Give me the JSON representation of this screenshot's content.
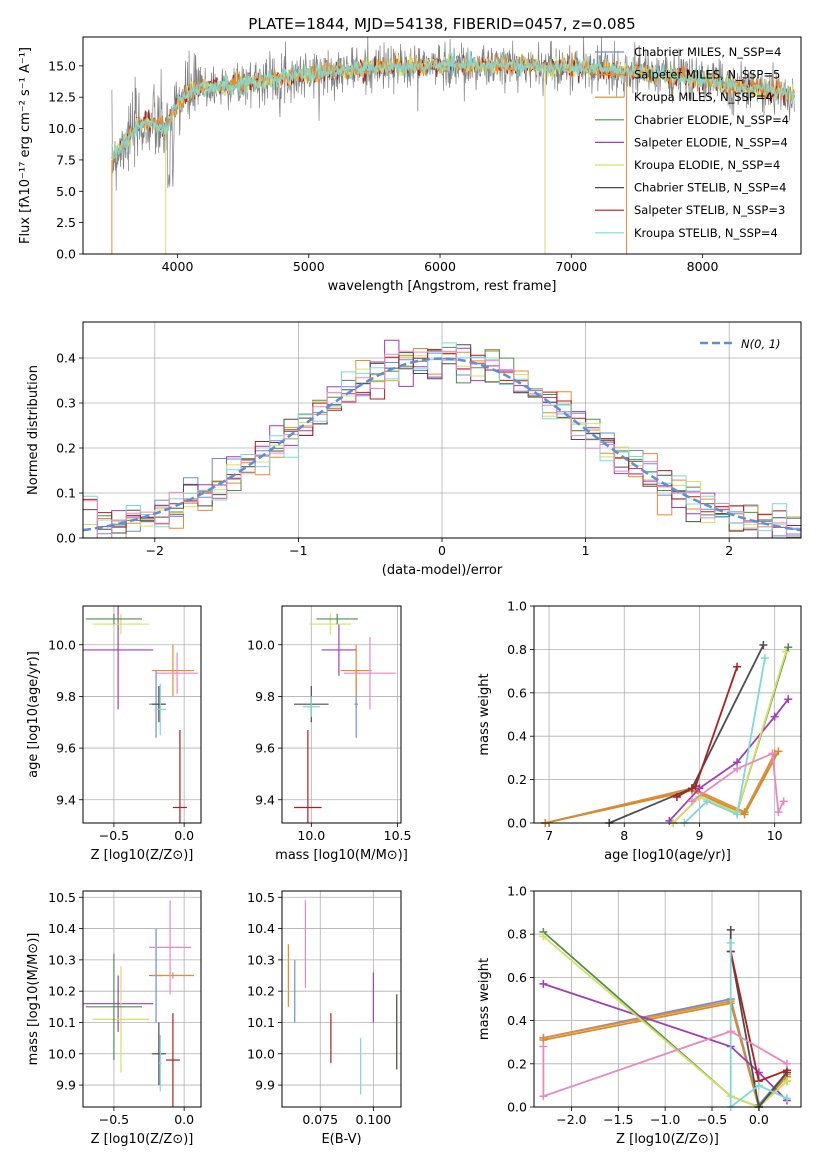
{
  "colors": {
    "grid": "#b0b0b0",
    "series": [
      "#6a8fd8",
      "#ee8a2e",
      "#d08d2a",
      "#4f8f4f",
      "#a03db8",
      "#d8e060",
      "#4d4d4d",
      "#b01f1f",
      "#7fd8d8"
    ],
    "pink": "#e889c4",
    "normal_curve": "#5b8fd6"
  },
  "chart_data": [
    {
      "id": "spectrum",
      "type": "line",
      "title": "PLATE=1844, MJD=54138, FIBERID=0457, z=0.085",
      "xlabel": "wavelength [Angstrom, rest frame]",
      "ylabel": "Flux [fλ10⁻¹⁷ erg cm⁻² s⁻¹ A⁻¹]",
      "xlim": [
        3280,
        8750
      ],
      "ylim": [
        0,
        17.3
      ],
      "x_ticks": [
        4000,
        5000,
        6000,
        7000,
        8000
      ],
      "y_ticks": [
        0.0,
        2.5,
        5.0,
        7.5,
        10.0,
        12.5,
        15.0
      ],
      "grid": false,
      "legend_position": "top-right",
      "legend": [
        "Chabrier MILES, N_SSP=4",
        "Salpeter MILES, N_SSP=5",
        "Kroupa MILES, N_SSP=4",
        "Chabrier ELODIE, N_SSP=4",
        "Salpeter ELODIE, N_SSP=4",
        "Kroupa ELODIE, N_SSP=4",
        "Chabrier STELIB, N_SSP=4",
        "Salpeter STELIB, N_SSP=3",
        "Kroupa STELIB, N_SSP=4"
      ],
      "continuum_x": [
        3500,
        3600,
        3700,
        3800,
        3900,
        4000,
        4100,
        4200,
        4400,
        4600,
        4800,
        5000,
        5200,
        5500,
        5800,
        6000,
        6300,
        6600,
        6900,
        7200,
        7500,
        7800,
        8000,
        8200,
        8500,
        8700
      ],
      "continuum_y": [
        7.5,
        9.0,
        10.2,
        10.5,
        9.8,
        12.0,
        13.0,
        13.2,
        13.5,
        13.8,
        14.1,
        14.4,
        14.6,
        14.8,
        15.0,
        15.1,
        15.0,
        15.0,
        14.9,
        14.8,
        14.5,
        14.2,
        13.9,
        13.5,
        13.0,
        12.7
      ]
    },
    {
      "id": "residuals",
      "type": "line",
      "xlabel": "(data-model)/error",
      "ylabel": "Normed distribution",
      "xlim": [
        -2.5,
        2.5
      ],
      "ylim": [
        0,
        0.48
      ],
      "x_ticks": [
        -2,
        -1,
        0,
        1,
        2
      ],
      "y_ticks": [
        0.0,
        0.1,
        0.2,
        0.3,
        0.4
      ],
      "grid": true,
      "legend_position": "top-right",
      "legend": [
        "N(0, 1)"
      ],
      "bin_width": 0.1
    },
    {
      "id": "age_vs_Z",
      "type": "scatter",
      "xlabel": "Z [log10(Z/Z⊙)]",
      "ylabel": "age [log10(age/yr)]",
      "xlim": [
        -0.72,
        0.12
      ],
      "ylim": [
        9.31,
        10.15
      ],
      "x_ticks": [
        -0.5,
        0.0
      ],
      "y_ticks": [
        9.4,
        9.6,
        9.8,
        10.0
      ],
      "grid": true,
      "points": [
        {
          "series": 0,
          "x": -0.2,
          "y": 9.77,
          "xerr": 0.05,
          "yerr": 0.13
        },
        {
          "series": 1,
          "x": -0.08,
          "y": 9.9,
          "xerr": 0.15,
          "yerr": 0.1
        },
        {
          "series": 4,
          "x": -0.47,
          "y": 9.98,
          "xerr": 0.25,
          "yerr": 0.23
        },
        {
          "series": 5,
          "x": -0.45,
          "y": 10.08,
          "xerr": 0.2,
          "yerr": 0.04
        },
        {
          "series": 6,
          "x": -0.18,
          "y": 9.77,
          "xerr": 0.05,
          "yerr": 0.07
        },
        {
          "series": 3,
          "x": -0.5,
          "y": 10.1,
          "xerr": 0.2,
          "yerr": 0.02
        },
        {
          "series": 7,
          "x": -0.03,
          "y": 9.37,
          "xerr": 0.05,
          "yerr": 0.3
        },
        {
          "series": 8,
          "x": -0.17,
          "y": 9.75,
          "xerr": 0.04,
          "yerr": 0.1
        },
        {
          "series": "pink",
          "x": -0.05,
          "y": 9.89,
          "xerr": 0.15,
          "yerr": 0.08
        }
      ]
    },
    {
      "id": "age_vs_mass",
      "type": "scatter",
      "xlabel": "mass [log10(M/M⊙)]",
      "ylabel": "",
      "xlim": [
        9.83,
        10.52
      ],
      "ylim": [
        9.31,
        10.15
      ],
      "x_ticks": [
        10.0,
        10.5
      ],
      "y_ticks": [
        9.4,
        9.6,
        9.8,
        10.0
      ],
      "grid": true,
      "points": [
        {
          "series": 0,
          "x": 10.26,
          "y": 9.77,
          "xerr": 0.01,
          "yerr": 0.13
        },
        {
          "series": 1,
          "x": 10.26,
          "y": 9.9,
          "xerr": 0.09,
          "yerr": 0.1
        },
        {
          "series": 4,
          "x": 10.16,
          "y": 9.98,
          "xerr": 0.1,
          "yerr": 0.1
        },
        {
          "series": 5,
          "x": 10.11,
          "y": 10.08,
          "xerr": 0.12,
          "yerr": 0.04
        },
        {
          "series": 6,
          "x": 10.0,
          "y": 9.77,
          "xerr": 0.1,
          "yerr": 0.07
        },
        {
          "series": 3,
          "x": 10.15,
          "y": 10.1,
          "xerr": 0.12,
          "yerr": 0.02
        },
        {
          "series": 7,
          "x": 9.98,
          "y": 9.37,
          "xerr": 0.08,
          "yerr": 0.3
        },
        {
          "series": 8,
          "x": 10.0,
          "y": 9.76,
          "xerr": 0.05,
          "yerr": 0.04
        },
        {
          "series": "pink",
          "x": 10.34,
          "y": 9.89,
          "xerr": 0.15,
          "yerr": 0.14
        }
      ]
    },
    {
      "id": "massweight_vs_age",
      "type": "line",
      "xlabel": "age [log10(age/yr)]",
      "ylabel": "mass weight",
      "xlim": [
        6.8,
        10.35
      ],
      "ylim": [
        0,
        1.0
      ],
      "x_ticks": [
        7,
        8,
        9,
        10
      ],
      "y_ticks": [
        0.0,
        0.2,
        0.4,
        0.6,
        0.8,
        1.0
      ],
      "grid": true,
      "series": [
        {
          "color": 0,
          "x": [
            6.95,
            8.9,
            9.6,
            10.0
          ],
          "y": [
            0.0,
            0.16,
            0.05,
            0.32
          ]
        },
        {
          "color": 1,
          "x": [
            6.95,
            8.9,
            9.6,
            10.0
          ],
          "y": [
            0.0,
            0.16,
            0.05,
            0.32
          ]
        },
        {
          "color": 2,
          "x": [
            6.95,
            8.9,
            9.6,
            10.05
          ],
          "y": [
            0.0,
            0.15,
            0.04,
            0.33
          ]
        },
        {
          "color": 3,
          "x": [
            8.65,
            9.0,
            9.5,
            10.18
          ],
          "y": [
            0.0,
            0.12,
            0.05,
            0.81
          ]
        },
        {
          "color": 4,
          "x": [
            8.6,
            9.0,
            9.5,
            10.0,
            10.18
          ],
          "y": [
            0.01,
            0.16,
            0.28,
            0.49,
            0.57
          ]
        },
        {
          "color": 5,
          "x": [
            8.65,
            9.0,
            9.5,
            10.15
          ],
          "y": [
            0.0,
            0.12,
            0.05,
            0.79
          ]
        },
        {
          "color": 6,
          "x": [
            7.8,
            8.9,
            9.85
          ],
          "y": [
            0.0,
            0.16,
            0.82
          ]
        },
        {
          "color": 7,
          "x": [
            8.7,
            8.95,
            9.5
          ],
          "y": [
            0.12,
            0.17,
            0.72
          ]
        },
        {
          "color": 8,
          "x": [
            8.8,
            9.1,
            9.5,
            9.87
          ],
          "y": [
            0.0,
            0.1,
            0.04,
            0.76
          ]
        },
        {
          "color": "pink",
          "x": [
            8.9,
            9.5,
            9.97,
            10.05,
            10.12
          ],
          "y": [
            0.1,
            0.25,
            0.32,
            0.05,
            0.1
          ]
        }
      ]
    },
    {
      "id": "mass_vs_Z",
      "type": "scatter",
      "xlabel": "Z [log10(Z/Z⊙)]",
      "ylabel": "mass [log10(M/M⊙)]",
      "xlim": [
        -0.72,
        0.12
      ],
      "ylim": [
        9.83,
        10.52
      ],
      "x_ticks": [
        -0.5,
        0.0
      ],
      "y_ticks": [
        9.9,
        10.0,
        10.1,
        10.2,
        10.3,
        10.4,
        10.5
      ],
      "grid": true,
      "points": [
        {
          "series": 0,
          "x": -0.2,
          "y": 10.25,
          "xerr": 0.05,
          "yerr": 0.15
        },
        {
          "series": 1,
          "x": -0.08,
          "y": 10.25,
          "xerr": 0.15,
          "yerr": 0.01
        },
        {
          "series": 4,
          "x": -0.47,
          "y": 10.16,
          "xerr": 0.25,
          "yerr": 0.09
        },
        {
          "series": 5,
          "x": -0.45,
          "y": 10.11,
          "xerr": 0.2,
          "yerr": 0.17
        },
        {
          "series": 6,
          "x": -0.18,
          "y": 10.0,
          "xerr": 0.05,
          "yerr": 0.1
        },
        {
          "series": 3,
          "x": -0.5,
          "y": 10.15,
          "xerr": 0.2,
          "yerr": 0.17
        },
        {
          "series": 7,
          "x": -0.08,
          "y": 9.98,
          "xerr": 0.05,
          "yerr": 0.15
        },
        {
          "series": 8,
          "x": -0.17,
          "y": 9.97,
          "xerr": 0.01,
          "yerr": 0.09
        },
        {
          "series": "pink",
          "x": -0.1,
          "y": 10.34,
          "xerr": 0.15,
          "yerr": 0.15
        }
      ]
    },
    {
      "id": "mass_vs_ebv",
      "type": "scatter",
      "xlabel": "E(B-V)",
      "ylabel": "",
      "xlim": [
        0.057,
        0.113
      ],
      "ylim": [
        9.83,
        10.52
      ],
      "x_ticks": [
        0.075,
        0.1
      ],
      "y_ticks": [
        9.9,
        10.0,
        10.1,
        10.2,
        10.3,
        10.4,
        10.5
      ],
      "grid": true,
      "points": [
        {
          "series": 0,
          "x": 0.063,
          "y": 10.2,
          "xerr": 0.0,
          "yerr": 0.1
        },
        {
          "series": 1,
          "x": 0.06,
          "y": 10.25,
          "xerr": 0.0,
          "yerr": 0.1
        },
        {
          "series": 4,
          "x": 0.1,
          "y": 10.18,
          "xerr": 0.0,
          "yerr": 0.08
        },
        {
          "series": 5,
          "x": 0.111,
          "y": 10.07,
          "xerr": 0.0,
          "yerr": 0.12
        },
        {
          "series": 6,
          "x": 0.111,
          "y": 10.07,
          "xerr": 0.0,
          "yerr": 0.12
        },
        {
          "series": 7,
          "x": 0.08,
          "y": 10.05,
          "xerr": 0.0,
          "yerr": 0.08
        },
        {
          "series": 8,
          "x": 0.094,
          "y": 9.96,
          "xerr": 0.0,
          "yerr": 0.09
        },
        {
          "series": "pink",
          "x": 0.068,
          "y": 10.35,
          "xerr": 0.0,
          "yerr": 0.14
        }
      ]
    },
    {
      "id": "massweight_vs_Z",
      "type": "line",
      "xlabel": "Z [log10(Z/Z⊙)]",
      "ylabel": "mass weight",
      "xlim": [
        -2.4,
        0.45
      ],
      "ylim": [
        0,
        1.0
      ],
      "x_ticks": [
        -2.0,
        -1.5,
        -1.0,
        -0.5,
        0.0
      ],
      "y_ticks": [
        0.0,
        0.2,
        0.4,
        0.6,
        0.8,
        1.0
      ],
      "grid": true,
      "series": [
        {
          "color": 0,
          "x": [
            -2.3,
            -0.3,
            0.0,
            0.3
          ],
          "y": [
            0.32,
            0.5,
            0.01,
            0.16
          ]
        },
        {
          "color": 1,
          "x": [
            -2.3,
            -0.3,
            0.0,
            0.3
          ],
          "y": [
            0.32,
            0.49,
            0.0,
            0.15
          ]
        },
        {
          "color": 2,
          "x": [
            -2.3,
            -0.3,
            0.0,
            0.3
          ],
          "y": [
            0.31,
            0.48,
            0.0,
            0.14
          ]
        },
        {
          "color": 3,
          "x": [
            -2.3,
            -0.3,
            0.0,
            0.3
          ],
          "y": [
            0.81,
            0.05,
            0.0,
            0.12
          ]
        },
        {
          "color": 4,
          "x": [
            -2.3,
            -0.3,
            0.0,
            0.3
          ],
          "y": [
            0.57,
            0.28,
            0.16,
            0.03
          ]
        },
        {
          "color": 5,
          "x": [
            -2.3,
            -0.3,
            0.0,
            0.3
          ],
          "y": [
            0.79,
            0.05,
            0.0,
            0.12
          ]
        },
        {
          "color": 6,
          "x": [
            -0.3,
            -0.3,
            0.0,
            0.3
          ],
          "y": [
            0.82,
            0.72,
            0.0,
            0.16
          ]
        },
        {
          "color": 7,
          "x": [
            -0.3,
            0.0,
            0.3
          ],
          "y": [
            0.72,
            0.12,
            0.17
          ]
        },
        {
          "color": 8,
          "x": [
            -0.3,
            -0.3,
            0.0,
            0.3
          ],
          "y": [
            0.76,
            0.0,
            0.1,
            0.04
          ]
        },
        {
          "color": "pink",
          "x": [
            -2.3,
            -2.3,
            -0.3,
            0.3
          ],
          "y": [
            0.28,
            0.05,
            0.35,
            0.2
          ]
        }
      ]
    }
  ]
}
